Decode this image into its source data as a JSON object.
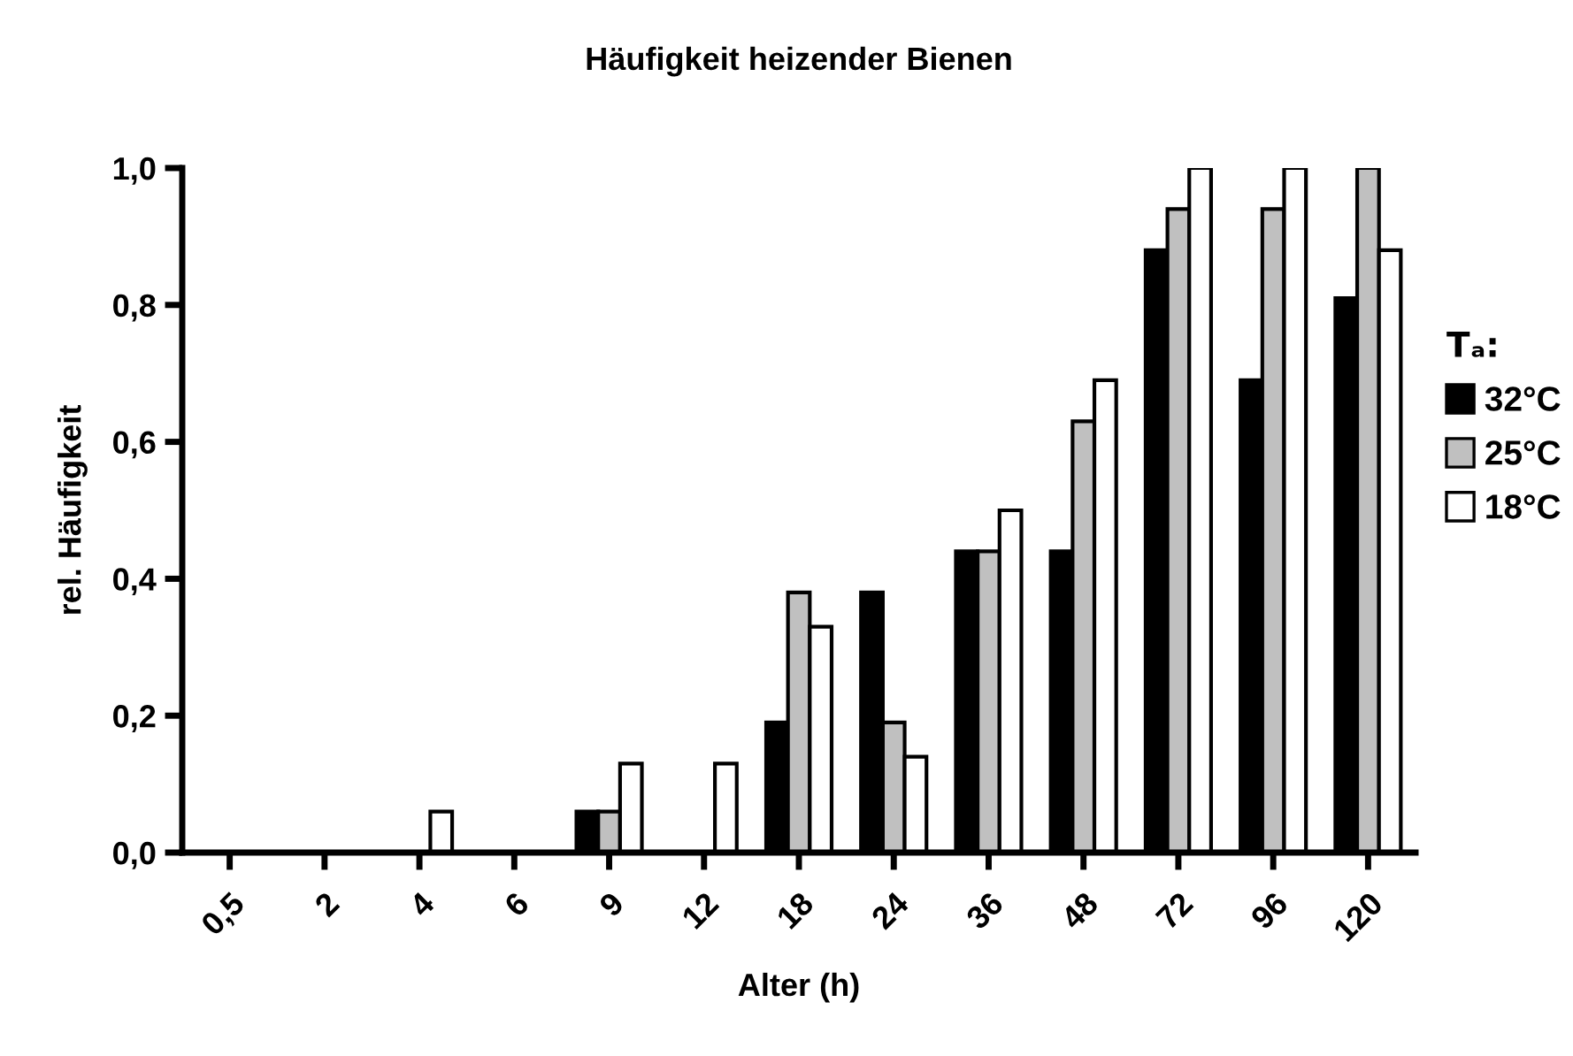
{
  "chart_data": {
    "type": "bar",
    "title": "Häufigkeit heizender Bienen",
    "xlabel": "Alter (h)",
    "ylabel": "rel. Häufigkeit",
    "legend_title": "Tₐ:",
    "categories": [
      "0,5",
      "2",
      "4",
      "6",
      "9",
      "12",
      "18",
      "24",
      "36",
      "48",
      "72",
      "96",
      "120"
    ],
    "series": [
      {
        "name": "32°C",
        "color": "#000000",
        "values": [
          0,
          0,
          0,
          0,
          0.06,
          0,
          0.19,
          0.38,
          0.44,
          0.44,
          0.88,
          0.69,
          0.81
        ]
      },
      {
        "name": "25°C",
        "color": "#c0c0c0",
        "values": [
          0,
          0,
          0,
          0,
          0.06,
          0,
          0.38,
          0.19,
          0.44,
          0.63,
          0.94,
          0.94,
          1.0
        ]
      },
      {
        "name": "18°C",
        "color": "#ffffff",
        "values": [
          0,
          0,
          0.06,
          0,
          0.13,
          0.13,
          0.33,
          0.14,
          0.5,
          0.69,
          1.0,
          1.0,
          0.88
        ]
      }
    ],
    "ylim": [
      0,
      1.0
    ],
    "yticks": [
      {
        "value": 0,
        "label": "0,0"
      },
      {
        "value": 0.2,
        "label": "0,2"
      },
      {
        "value": 0.4,
        "label": "0,4"
      },
      {
        "value": 0.6,
        "label": "0,6"
      },
      {
        "value": 0.8,
        "label": "0,8"
      },
      {
        "value": 1.0,
        "label": "1,0"
      }
    ],
    "grid": false,
    "legend": "right"
  }
}
